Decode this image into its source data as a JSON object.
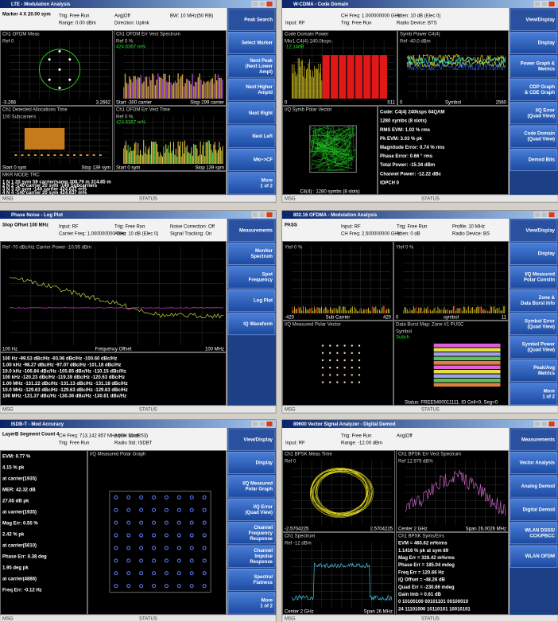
{
  "status_labels": [
    "MSG",
    "STATUS"
  ],
  "panels": [
    {
      "title": "LTE - Modulation Analysis",
      "header": [
        "Marker 4 X 20.00 sym",
        "Trig: Free Run",
        "Range: 0.00 dBm",
        "Avg|Off",
        "Direction: Uplink",
        "BW: 10 MHz(50 RB)"
      ],
      "softkeys": [
        [
          "Peak Search"
        ],
        [
          "Select Marker"
        ],
        [
          "Next Peak",
          "(Next Lower",
          "Ampl)"
        ],
        [
          "Next Higher",
          "Ampld"
        ],
        [
          "Next Right"
        ],
        [
          "Next Left"
        ],
        [
          "Mkr->CF"
        ],
        [
          "More",
          "1 of 2"
        ]
      ],
      "windows": [
        {
          "title": "Ch1 OFDM Meas",
          "lines": [
            "Ref 0"
          ],
          "footer": [
            "-3.266",
            "3.2662"
          ]
        },
        {
          "title": "Ch1 OFDM Err Vect Spectrum",
          "lines": [
            "Ref 0 %",
            "424.6367 m%"
          ],
          "footer": [
            "Start -300 carrier",
            "Stop 299 carrier"
          ]
        },
        {
          "title": "Ch1 Detected Allocations Time",
          "lines": [
            "100 Subcarriers"
          ],
          "footer": [
            "Start 0 sym",
            "Stop 139 sym"
          ]
        },
        {
          "title": "Ch1 OFDM Err Vect Time",
          "lines": [
            "Ref 0 %",
            "424.6367 m%"
          ],
          "footer": [
            "Start 0 sym",
            "Stop 139 sym"
          ]
        },
        {
          "title": "MKR MODE TRC",
          "lines": [
            "1  N  1   20 sym 59 carrier(samp   308.79 m  314.85 m",
            "2  N  2   -140 carrier 20 sym          -140 Subcarriers",
            "3  N  3   20 sym -140 carrier            424.637 m%",
            "4  N  4   -140 carrier 20 sym            424.637 m%"
          ],
          "footer": []
        }
      ]
    },
    {
      "title": "W-CDMA - Code Domain",
      "header": [
        "Input: RF",
        "CH Freq: 1.000000000 GHz",
        "Trig: Free Run",
        "Atten: 10 dB (Elec 0)",
        "Radio Device: BTS"
      ],
      "softkeys": [
        [
          "View/Display"
        ],
        [
          "Display"
        ],
        [
          "Power Graph &",
          "Metrics"
        ],
        [
          "CDP Graph",
          "& CDE Graph"
        ],
        [
          "I/Q Error",
          "(Quad View)"
        ],
        [
          "Code Domain",
          "(Quad View)"
        ],
        [
          "Demod Bits"
        ]
      ],
      "windows": [
        {
          "title": "Code Domain Power",
          "lines": [
            "Mkr1 C4(4) 240.0ksps",
            "-12.14dB"
          ],
          "footer": [
            "0",
            "511"
          ]
        },
        {
          "title": "Symb Power C4(4)",
          "lines": [
            "Ref -40.0 dBm"
          ],
          "footer": [
            "0",
            "Symbol",
            "2560"
          ]
        },
        {
          "title": "I/Q Symb Polar Vector",
          "lines": [],
          "footer": [
            "C4(4) : 1280 symbs (8 slots)"
          ]
        },
        {
          "title": "",
          "lines": [
            "Code:  C4(4) 240ksps 64QAM",
            "1280 symbs (8 slots)",
            "RMS EVM:        1.02 % rms",
            "Pk EVM:           3.03 % pk",
            "Magnitude Error: 0.74 % rms",
            "Phase Error:      0.66 ° rms",
            "Total Power:     -15.34 dBm",
            "Channel Power:   -12.22 dBc",
            "tDPCH             0"
          ],
          "footer": []
        }
      ]
    },
    {
      "title": "Phase Noise - Log Plot",
      "header": [
        "Stop Offset 100 MHz",
        "Input: RF",
        "Carrier Freq: 1.000000000 GHz",
        "Trig: Free Run",
        "Atten: 10 dB (Elec 0)",
        "Noise Correction: Off",
        "Signal Tracking: On"
      ],
      "softkeys": [
        [
          "Measurements"
        ],
        [
          "Monitor",
          "Spectrum"
        ],
        [
          "Spot",
          "Frequency"
        ],
        [
          "Log Plot"
        ],
        [
          "IQ Waveform"
        ]
      ],
      "windows": [
        {
          "title": "",
          "lines": [
            "Ref -70 dBc/Hz        Carrier Power -10.95 dBm"
          ],
          "footer": [
            "100 Hz",
            "Frequency Offset",
            "100 MHz"
          ]
        },
        {
          "title": "",
          "lines": [
            "100 Hz     -99.53 dBc/Hz   -93.06 dBc/Hz   -100.60 dBc/Hz",
            "1.00 kHz   -98.27 dBc/Hz   -97.07 dBc/Hz   -101.18 dBc/Hz",
            "10.0 kHz  -106.84 dBc/Hz  -105.85 dBc/Hz   -110.15 dBc/Hz",
            "100 kHz   -120.23 dBc/Hz  -119.39 dBc/Hz   -120.63 dBc/Hz",
            "1.00 MHz  -131.22 dBc/Hz  -131.13 dBc/Hz   -131.18 dBc/Hz",
            "10.0 MHz  -129.63 dBc/Hz  -129.63 dBc/Hz   -129.63 dBc/Hz",
            "100 MHz   -131.37 dBc/Hz  -130.36 dBc/Hz   -130.61 dBc/Hz"
          ],
          "footer": []
        }
      ]
    },
    {
      "title": "802.16 OFDMA - Modulation Analysis",
      "header": [
        "PASS",
        "Input: RF",
        "CH Freq: 2.500000000 GHz",
        "Trig: Free Run",
        "Atten: 0 dB",
        "Profile: 10 MHz",
        "Radio Device: BS"
      ],
      "softkeys": [
        [
          "View/Display"
        ],
        [
          "Display"
        ],
        [
          "I/Q Measured",
          "Polar Constln"
        ],
        [
          "Zone &",
          "Data Burst Info"
        ],
        [
          "Symbol Error",
          "(Quad View)"
        ],
        [
          "Symbol Power",
          "(Quad View)"
        ],
        [
          "Peak/Avg",
          "Metrics"
        ],
        [
          "More",
          "1 of 2"
        ]
      ],
      "windows": [
        {
          "title": "",
          "lines": [
            "Ylef 0 %"
          ],
          "footer": [
            "-420",
            "Sub Carrier",
            "420"
          ]
        },
        {
          "title": "",
          "lines": [
            "Ylef 0 %"
          ],
          "footer": [
            "0",
            "symbol",
            "11"
          ]
        },
        {
          "title": "I/Q Measured Polar Vector",
          "lines": [],
          "footer": []
        },
        {
          "title": "Data Burst Map: Zone #1 PUSC",
          "lines": [
            "Symbol",
            "Subch"
          ],
          "footer": [
            "Status: FREE5400011111, ID Cell=0, Seg=0"
          ]
        }
      ]
    },
    {
      "title": "ISDB-T - Mod Accuracy",
      "header": [
        "LayerB Segment Count 4",
        "CH Freq: 713.142 857 MHz (CH Num: 53)",
        "Trig: Free Run",
        "Atten: 10 dB",
        "Radio Std: ISDBT"
      ],
      "softkeys": [
        [
          "View/Display"
        ],
        [
          "Display"
        ],
        [
          "I/Q Measured",
          "Polar Graph"
        ],
        [
          "I/Q Error",
          "(Quad View)"
        ],
        [
          "Channel",
          "Frequency",
          "Response"
        ],
        [
          "Channel",
          "Impulse",
          "Response"
        ],
        [
          "Spectral",
          "Flatness"
        ],
        [
          "More",
          "1 of 2"
        ]
      ],
      "windows": [
        {
          "title": "",
          "lines": [
            "EVM:            0.77 %",
            "                  4.15 % pk",
            "                  at carrier(1935)",
            "MER:           42.32 dB",
            "                 27.65 dB pk",
            "                  at carrier(1935)",
            "Mag Err:       0.55 %",
            "                  2.42 % pk",
            "                  at carrier(5610)",
            "Phase Err:    0.38 deg",
            "                  1.95 deg pk",
            "                  at carrier(4886)",
            "Freq Err:      -0.12 Hz"
          ],
          "footer": []
        },
        {
          "title": "I/Q Measured Polar Graph",
          "lines": [],
          "footer": []
        }
      ]
    },
    {
      "title": "89600 Vector Signal Analyzer - Digital Demod",
      "header": [
        "Input: RF",
        "Trig: Free Run",
        "Range: -12.00 dBm",
        "Avg|Off"
      ],
      "softkeys": [
        [
          "Measurements"
        ],
        [
          "Vector Analysis"
        ],
        [
          "Analog Demod"
        ],
        [
          "Digital Demod"
        ],
        [
          "WLAN DSSS/",
          "CCK/PBCC"
        ],
        [
          "WLAN OFDM"
        ]
      ],
      "windows": [
        {
          "title": "Ch1 BPSK Meas Time",
          "lines": [
            "Ref 0"
          ],
          "footer": [
            "-2.5704225",
            "2.5704225"
          ]
        },
        {
          "title": "Ch1 BPSK Err Vect Spectrum",
          "lines": [
            "Ref 12.979 dB%"
          ],
          "footer": [
            "Center 2 GHz",
            "Span 26.0026 MHz"
          ]
        },
        {
          "title": "Ch1 Spectrum",
          "lines": [
            "Ref -12 dBm"
          ],
          "footer": [
            "Center 2 GHz",
            "Span 26 MHz"
          ]
        },
        {
          "title": "Ch1 BPSK Syms/Errs",
          "lines": [
            "EVM      = 460.62    m%rms",
            "  1.1416      % pk at sym  89",
            "Mag Err  = 328.42    m%rms",
            "Phase Err = 185.04   mdeg",
            "Freq Err = 120.66    Hz",
            "IQ Offset = -48.26   dB",
            "Quad Err = -230.66  mdeg",
            "Gain Imb = 0.61       dB",
            "0  10100100 00101101 00100010",
            "24 11101000 10110101 10010101"
          ],
          "footer": []
        }
      ]
    }
  ]
}
